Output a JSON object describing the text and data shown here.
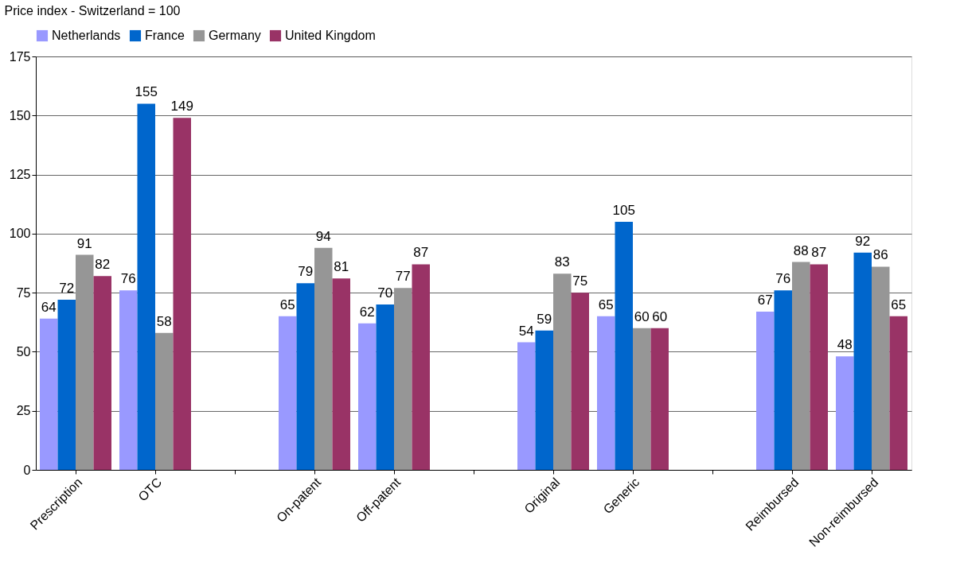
{
  "chart_data": {
    "type": "bar",
    "ylabel": "Price index - Switzerland = 100",
    "categories": [
      "Prescription",
      "OTC",
      null,
      "On-patent",
      "Off-patent",
      null,
      "Original",
      "Generic",
      null,
      "Reimbursed",
      "Non-reimbursed"
    ],
    "series": [
      {
        "name": "Netherlands",
        "color": "#9999ff",
        "values": [
          64,
          76,
          null,
          65,
          62,
          null,
          54,
          65,
          null,
          67,
          48
        ]
      },
      {
        "name": "France",
        "color": "#0066cc",
        "values": [
          72,
          155,
          null,
          79,
          70,
          null,
          59,
          105,
          null,
          76,
          92
        ]
      },
      {
        "name": "Germany",
        "color": "#969696",
        "values": [
          91,
          58,
          null,
          94,
          77,
          null,
          83,
          60,
          null,
          88,
          86
        ]
      },
      {
        "name": "United Kingdom",
        "color": "#993366",
        "values": [
          82,
          149,
          null,
          81,
          87,
          null,
          75,
          60,
          null,
          87,
          65
        ]
      }
    ],
    "ylim": [
      0,
      175
    ],
    "yticks": [
      0,
      25,
      50,
      75,
      100,
      125,
      150,
      175
    ],
    "grid": "y",
    "legend": "top",
    "data_labels": true
  }
}
